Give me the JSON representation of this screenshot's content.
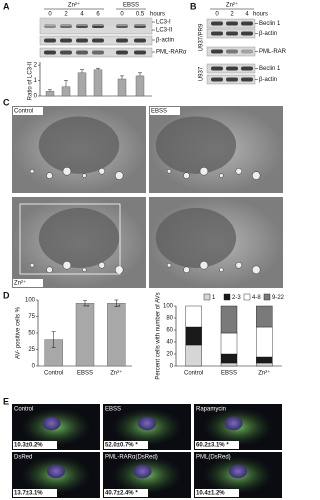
{
  "panel_a": {
    "label": "A",
    "groups": [
      {
        "name": "Zn²⁺",
        "times": [
          "0",
          "2",
          "4",
          "6"
        ]
      },
      {
        "name": "EBSS",
        "times": [
          "0",
          "0.5"
        ]
      }
    ],
    "time_unit": "hours",
    "bands": [
      "LC3-I",
      "LC3-II",
      "β-actin",
      "PML-RARα"
    ],
    "chart": {
      "type": "bar",
      "y_label": "Ratio of LC3-II",
      "values": [
        0.3,
        0.6,
        1.5,
        1.7,
        1.1,
        1.3
      ],
      "errors": [
        0.1,
        0.4,
        0.2,
        0.1,
        0.2,
        0.2
      ],
      "ylim": [
        0,
        2.2
      ],
      "yticks": [
        0,
        1,
        2
      ],
      "color": "#a8a8a8"
    }
  },
  "panel_b": {
    "label": "B",
    "group": "Zn²⁺",
    "times": [
      "0",
      "2",
      "4"
    ],
    "time_unit": "hours",
    "blots": [
      {
        "cell_line": "U937/PR9",
        "bands": [
          "Beclin 1",
          "β-actin",
          "PML-RARα"
        ]
      },
      {
        "cell_line": "U937",
        "bands": [
          "Beclin 1",
          "β-actin"
        ]
      }
    ]
  },
  "panel_c": {
    "label": "C",
    "images": [
      "Control",
      "EBSS",
      "Zn²⁺"
    ]
  },
  "panel_d": {
    "label": "D",
    "left_chart": {
      "type": "bar",
      "y_label": "AV- positive cells %",
      "categories": [
        "Control",
        "EBSS",
        "Zn²⁺"
      ],
      "values": [
        40,
        95,
        95
      ],
      "errors": [
        12,
        4,
        5
      ],
      "ylim": [
        0,
        100
      ],
      "yticks": [
        0,
        25,
        50,
        75,
        100
      ],
      "color": "#a8a8a8",
      "significant": [
        false,
        true,
        true
      ],
      "significance_mark": "*"
    },
    "right_chart": {
      "type": "stacked_bar",
      "y_label": "Percent cells with number of AVs",
      "categories": [
        "Control",
        "EBSS",
        "Zn²⁺"
      ],
      "series": [
        {
          "name": "1",
          "color": "#d6d6d6",
          "values": [
            35,
            5,
            5
          ]
        },
        {
          "name": "2-3",
          "color": "#1a1a1a",
          "values": [
            30,
            15,
            10
          ]
        },
        {
          "name": "4-8",
          "color": "#ffffff",
          "values": [
            35,
            35,
            50
          ]
        },
        {
          "name": "9-22",
          "color": "#7a7a7a",
          "values": [
            0,
            45,
            35
          ]
        }
      ],
      "ylim": [
        0,
        100
      ],
      "yticks": [
        0,
        20,
        40,
        60,
        80,
        100
      ]
    }
  },
  "panel_e": {
    "label": "E",
    "images": [
      {
        "title": "Control",
        "stat": "10.3±0.2%"
      },
      {
        "title": "EBSS",
        "stat": "52.0±0.7% *"
      },
      {
        "title": "Rapamycin",
        "stat": "60.2±3.1% *"
      },
      {
        "title": "DsRed",
        "stat": "13.7±3.1%"
      },
      {
        "title": "PML-RARα(DsRed)",
        "stat": "40.7±2.4% *"
      },
      {
        "title": "PML(DsRed)",
        "stat": "10.4±1.2%"
      }
    ]
  }
}
